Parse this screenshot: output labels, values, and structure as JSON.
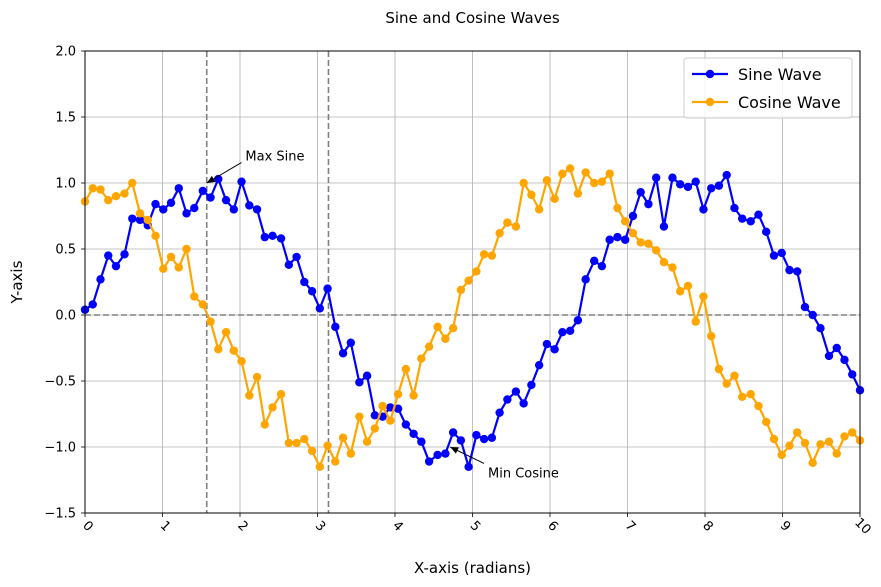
{
  "chart_data": {
    "type": "line",
    "title": "Sine and Cosine Waves",
    "xlabel": "X-axis (radians)",
    "ylabel": "Y-axis",
    "xlim": [
      0,
      10
    ],
    "ylim": [
      -1.5,
      2.0
    ],
    "xticks": [
      0,
      1,
      2,
      3,
      4,
      5,
      6,
      7,
      8,
      9,
      10
    ],
    "xtick_labels": [
      "0",
      "1",
      "2",
      "3",
      "4",
      "5",
      "6",
      "7",
      "8",
      "9",
      "10"
    ],
    "yticks": [
      -1.5,
      -1.0,
      -0.5,
      0.0,
      0.5,
      1.0,
      1.5,
      2.0
    ],
    "ytick_labels": [
      "−1.5",
      "−1.0",
      "−0.5",
      "0.0",
      "0.5",
      "1.0",
      "1.5",
      "2.0"
    ],
    "grid": true,
    "legend_position": "top-right",
    "x": [
      0.0,
      0.1,
      0.2,
      0.3,
      0.4,
      0.51,
      0.61,
      0.71,
      0.81,
      0.91,
      1.01,
      1.11,
      1.21,
      1.31,
      1.41,
      1.52,
      1.62,
      1.72,
      1.82,
      1.92,
      2.02,
      2.12,
      2.22,
      2.32,
      2.42,
      2.53,
      2.63,
      2.73,
      2.83,
      2.93,
      3.03,
      3.13,
      3.23,
      3.33,
      3.43,
      3.54,
      3.64,
      3.74,
      3.84,
      3.94,
      4.04,
      4.14,
      4.24,
      4.34,
      4.44,
      4.55,
      4.65,
      4.75,
      4.85,
      4.95,
      5.05,
      5.15,
      5.25,
      5.35,
      5.45,
      5.56,
      5.66,
      5.76,
      5.86,
      5.96,
      6.06,
      6.16,
      6.26,
      6.36,
      6.46,
      6.57,
      6.67,
      6.77,
      6.87,
      6.97,
      7.07,
      7.17,
      7.27,
      7.37,
      7.47,
      7.58,
      7.68,
      7.78,
      7.88,
      7.98,
      8.08,
      8.18,
      8.28,
      8.38,
      8.48,
      8.59,
      8.69,
      8.79,
      8.89,
      8.99,
      9.09,
      9.19,
      9.29,
      9.39,
      9.49,
      9.6,
      9.7,
      9.8,
      9.9,
      10.0
    ],
    "series": [
      {
        "name": "Sine Wave",
        "color": "#0000ff",
        "values": [
          0.04,
          0.08,
          0.27,
          0.45,
          0.37,
          0.46,
          0.73,
          0.72,
          0.68,
          0.84,
          0.8,
          0.85,
          0.96,
          0.77,
          0.81,
          0.94,
          0.89,
          1.03,
          0.87,
          0.8,
          1.01,
          0.83,
          0.8,
          0.59,
          0.6,
          0.58,
          0.38,
          0.44,
          0.25,
          0.18,
          0.05,
          0.2,
          -0.09,
          -0.29,
          -0.21,
          -0.51,
          -0.46,
          -0.76,
          -0.77,
          -0.7,
          -0.71,
          -0.83,
          -0.9,
          -0.96,
          -1.11,
          -1.06,
          -1.05,
          -0.89,
          -0.95,
          -1.15,
          -0.91,
          -0.94,
          -0.93,
          -0.74,
          -0.64,
          -0.58,
          -0.67,
          -0.53,
          -0.38,
          -0.22,
          -0.26,
          -0.13,
          -0.12,
          -0.04,
          0.27,
          0.41,
          0.37,
          0.57,
          0.59,
          0.57,
          0.75,
          0.93,
          0.84,
          1.04,
          0.67,
          1.04,
          0.99,
          0.97,
          1.01,
          0.8,
          0.96,
          0.98,
          1.06,
          0.81,
          0.73,
          0.71,
          0.76,
          0.63,
          0.45,
          0.47,
          0.34,
          0.33,
          0.06,
          0.0,
          -0.1,
          -0.31,
          -0.25,
          -0.34,
          -0.45,
          -0.57
        ]
      },
      {
        "name": "Cosine Wave",
        "color": "#ffa500",
        "values": [
          0.86,
          0.96,
          0.95,
          0.87,
          0.9,
          0.92,
          1.0,
          0.77,
          0.72,
          0.6,
          0.35,
          0.44,
          0.36,
          0.5,
          0.14,
          0.08,
          -0.05,
          -0.26,
          -0.13,
          -0.27,
          -0.35,
          -0.61,
          -0.47,
          -0.83,
          -0.7,
          -0.6,
          -0.97,
          -0.97,
          -0.94,
          -1.03,
          -1.15,
          -0.99,
          -1.11,
          -0.93,
          -1.05,
          -0.77,
          -0.96,
          -0.86,
          -0.69,
          -0.8,
          -0.6,
          -0.41,
          -0.61,
          -0.33,
          -0.24,
          -0.09,
          -0.18,
          -0.1,
          0.19,
          0.26,
          0.33,
          0.46,
          0.45,
          0.62,
          0.7,
          0.67,
          1.0,
          0.91,
          0.8,
          1.02,
          0.88,
          1.07,
          1.11,
          0.92,
          1.08,
          1.0,
          1.01,
          1.07,
          0.81,
          0.71,
          0.62,
          0.55,
          0.54,
          0.49,
          0.4,
          0.36,
          0.18,
          0.22,
          -0.05,
          0.14,
          -0.16,
          -0.41,
          -0.52,
          -0.46,
          -0.62,
          -0.6,
          -0.69,
          -0.81,
          -0.94,
          -1.06,
          -0.99,
          -0.89,
          -0.97,
          -1.12,
          -0.98,
          -0.96,
          -1.05,
          -0.92,
          -0.89,
          -0.95
        ]
      }
    ],
    "reference_lines": {
      "vertical": [
        1.5708,
        3.1416
      ],
      "horizontal": [
        0.0
      ],
      "color": "#808080"
    },
    "annotations": [
      {
        "text": "Max Sine",
        "point": [
          1.5708,
          1.0
        ],
        "text_at": [
          2.07,
          1.2
        ]
      },
      {
        "text": "Min Cosine",
        "point": [
          4.7124,
          -1.0
        ],
        "text_at": [
          5.2,
          -1.2
        ]
      }
    ]
  }
}
